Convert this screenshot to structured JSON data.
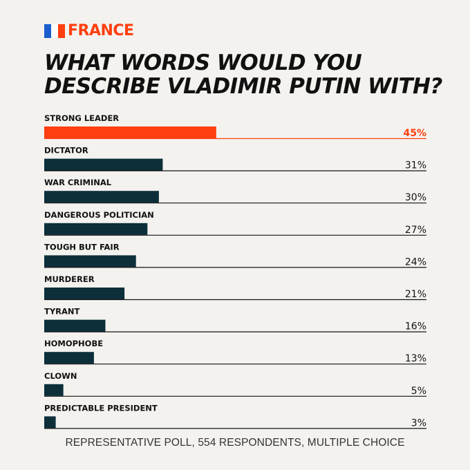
{
  "header": {
    "country": "FRANCE"
  },
  "title_lines": [
    "WHAT WORDS WOULD YOU",
    "DESCRIBE VLADIMIR PUTIN WITH?"
  ],
  "footer": "REPRESENTATIVE POLL, 554 RESPONDENTS, MULTIPLE CHOICE",
  "colors": {
    "accent": "#ff3f0f",
    "bar": "#0c2f3a",
    "text": "#111111",
    "flag_blue": "#1b5fce",
    "flag_white": "#ffffff",
    "flag_red": "#ff3f0f"
  },
  "chart_data": {
    "type": "bar",
    "orientation": "horizontal",
    "categories": [
      "STRONG LEADER",
      "DICTATOR",
      "WAR CRIMINAL",
      "DANGEROUS POLITICIAN",
      "TOUGH BUT FAIR",
      "MURDERER",
      "TYRANT",
      "HOMOPHOBE",
      "CLOWN",
      "PREDICTABLE PRESIDENT"
    ],
    "values": [
      45,
      31,
      30,
      27,
      24,
      21,
      16,
      13,
      5,
      3
    ],
    "value_labels": [
      "45%",
      "31%",
      "30%",
      "27%",
      "24%",
      "21%",
      "16%",
      "13%",
      "5%",
      "3%"
    ],
    "highlight_index": 0,
    "unit": "%",
    "xlim": [
      0,
      100
    ],
    "grid": false,
    "legend": "none"
  }
}
